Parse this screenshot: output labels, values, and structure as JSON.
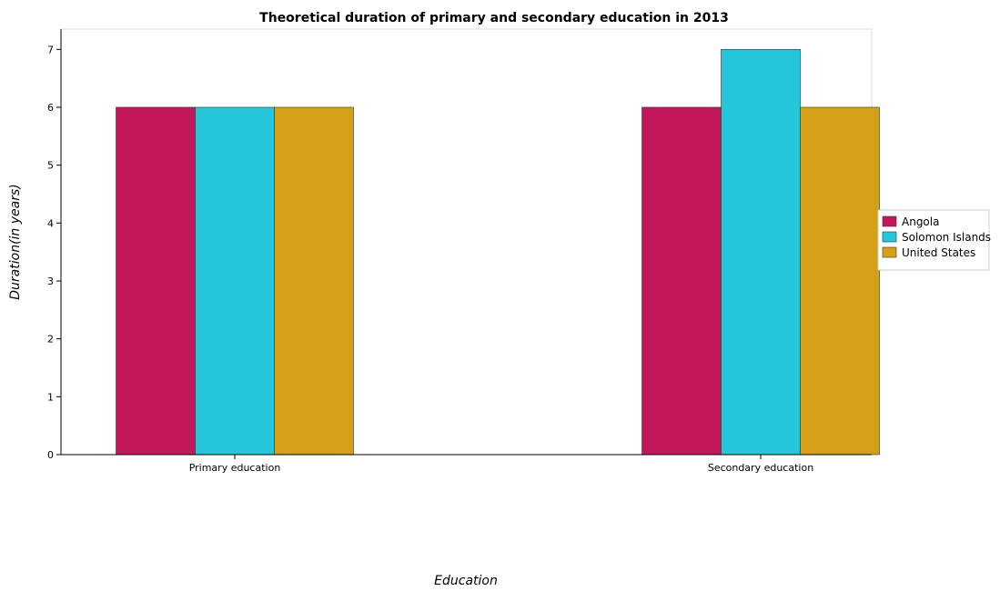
{
  "chart_data": {
    "type": "bar",
    "title": "Theoretical duration of primary and secondary education in 2013",
    "xlabel": "Education",
    "ylabel": "Duration(in years)",
    "categories": [
      "Primary education",
      "Secondary education"
    ],
    "series": [
      {
        "name": "Angola",
        "color": "#c2185b",
        "values": [
          6,
          6
        ]
      },
      {
        "name": "Solomon Islands",
        "color": "#26c6da",
        "values": [
          6,
          7
        ]
      },
      {
        "name": "United States",
        "color": "#d4a017",
        "values": [
          6,
          6
        ]
      }
    ],
    "ylim": [
      0,
      7.35
    ],
    "yticks": [
      0,
      1,
      2,
      3,
      4,
      5,
      6,
      7
    ],
    "grid": false,
    "legend_position": "right"
  }
}
